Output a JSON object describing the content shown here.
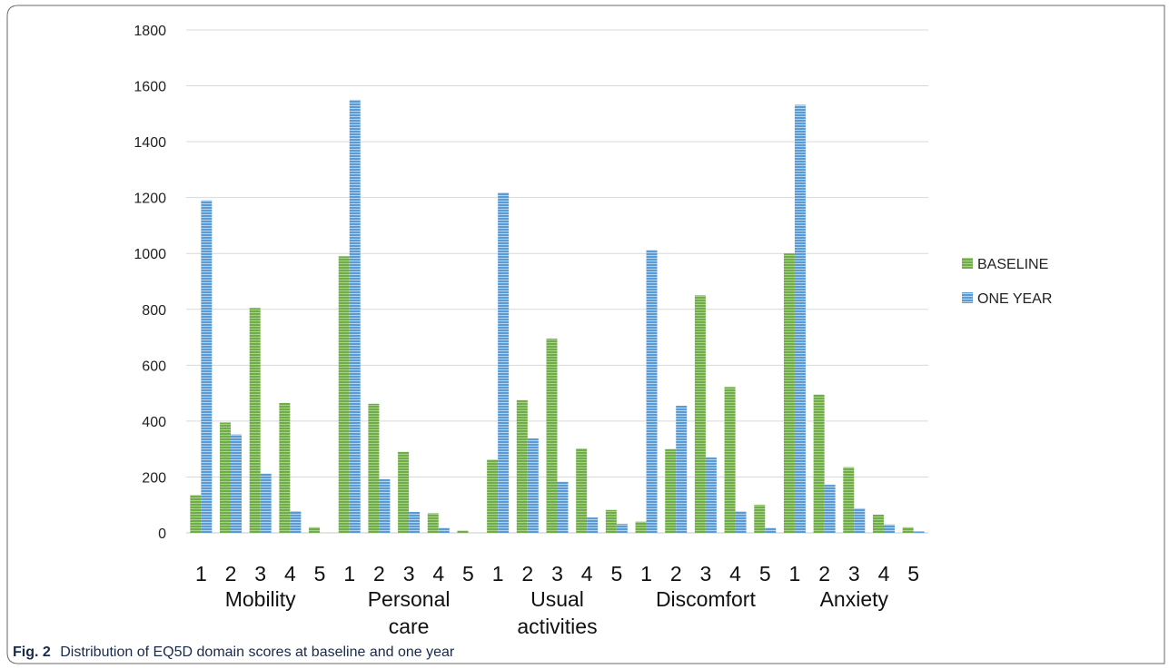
{
  "chart_data": {
    "type": "bar",
    "ylim": [
      0,
      1800
    ],
    "yticks": [
      "0",
      "200",
      "400",
      "600",
      "800",
      "1000",
      "1200",
      "1400",
      "1600",
      "1800"
    ],
    "grid": true,
    "legend_position": "right",
    "groups": [
      {
        "label_lines": [
          "Mobility"
        ],
        "categories": [
          "1",
          "2",
          "3",
          "4",
          "5"
        ]
      },
      {
        "label_lines": [
          "Personal",
          "care"
        ],
        "categories": [
          "1",
          "2",
          "3",
          "4",
          "5"
        ]
      },
      {
        "label_lines": [
          "Usual",
          "activities"
        ],
        "categories": [
          "1",
          "2",
          "3",
          "4",
          "5"
        ]
      },
      {
        "label_lines": [
          "Discomfort"
        ],
        "categories": [
          "1",
          "2",
          "3",
          "4",
          "5"
        ]
      },
      {
        "label_lines": [
          "Anxiety"
        ],
        "categories": [
          "1",
          "2",
          "3",
          "4",
          "5"
        ]
      }
    ],
    "series": [
      {
        "name": "BASELINE",
        "color": "#70ad47",
        "values": [
          [
            135,
            395,
            805,
            465,
            20
          ],
          [
            990,
            462,
            290,
            70,
            8
          ],
          [
            262,
            475,
            695,
            302,
            82
          ],
          [
            40,
            300,
            850,
            522,
            100
          ],
          [
            1000,
            495,
            235,
            65,
            20
          ]
        ]
      },
      {
        "name": "ONE YEAR",
        "color": "#5b9bd5",
        "values": [
          [
            1190,
            352,
            212,
            78,
            0
          ],
          [
            1550,
            192,
            75,
            18,
            0
          ],
          [
            1218,
            338,
            183,
            55,
            32
          ],
          [
            1012,
            455,
            270,
            77,
            18
          ],
          [
            1532,
            172,
            88,
            30,
            5
          ]
        ]
      }
    ]
  },
  "caption": {
    "label": "Fig. 2",
    "text": "Distribution of EQ5D domain scores at baseline and one year"
  }
}
